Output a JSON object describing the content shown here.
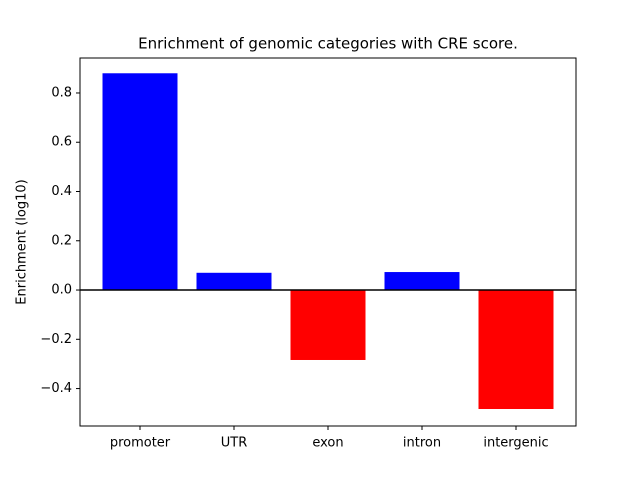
{
  "chart_data": {
    "type": "bar",
    "title": "Enrichment of genomic categories with CRE score.",
    "y_label": "Enrichment (log10)",
    "categories": [
      "promoter",
      "UTR",
      "exon",
      "intron",
      "intergenic"
    ],
    "values": [
      0.88,
      0.07,
      -0.284,
      0.073,
      -0.483
    ],
    "colors": [
      "#0000ff",
      "#0000ff",
      "#ff0000",
      "#0000ff",
      "#ff0000"
    ],
    "ylim": [
      -0.552,
      0.942
    ],
    "yticks": [
      {
        "value": -0.4,
        "label": "−0.4"
      },
      {
        "value": -0.2,
        "label": "−0.2"
      },
      {
        "value": 0,
        "label": "0.0"
      },
      0.2,
      0.4,
      0.6,
      0.8
    ],
    "hline": 0,
    "grid": false
  }
}
